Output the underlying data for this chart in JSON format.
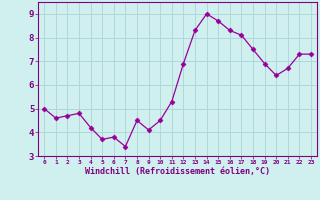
{
  "x": [
    0,
    1,
    2,
    3,
    4,
    5,
    6,
    7,
    8,
    9,
    10,
    11,
    12,
    13,
    14,
    15,
    16,
    17,
    18,
    19,
    20,
    21,
    22,
    23
  ],
  "y": [
    5.0,
    4.6,
    4.7,
    4.8,
    4.2,
    3.7,
    3.8,
    3.4,
    4.5,
    4.1,
    4.5,
    5.3,
    6.9,
    8.3,
    9.0,
    8.7,
    8.3,
    8.1,
    7.5,
    6.9,
    6.4,
    6.7,
    7.3,
    7.3
  ],
  "line_color": "#990099",
  "marker": "D",
  "marker_size": 2.5,
  "bg_color": "#d0f0f0",
  "grid_color": "#b0d8d8",
  "axis_color": "#800080",
  "tick_color": "#800080",
  "xlabel": "Windchill (Refroidissement éolien,°C)",
  "ylabel": "",
  "xlim": [
    -0.5,
    23.5
  ],
  "ylim": [
    3.0,
    9.5
  ],
  "yticks": [
    3,
    4,
    5,
    6,
    7,
    8,
    9
  ],
  "xticks": [
    0,
    1,
    2,
    3,
    4,
    5,
    6,
    7,
    8,
    9,
    10,
    11,
    12,
    13,
    14,
    15,
    16,
    17,
    18,
    19,
    20,
    21,
    22,
    23
  ]
}
